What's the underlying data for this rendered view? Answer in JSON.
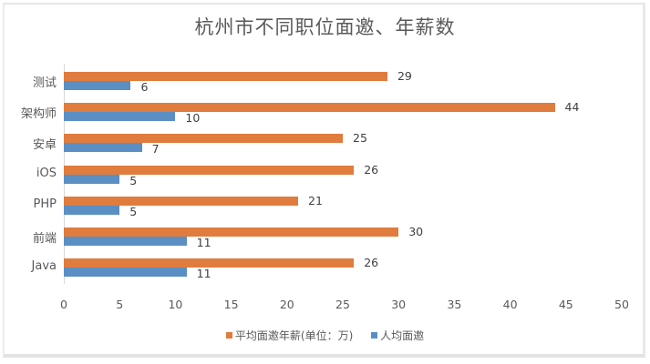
{
  "title": "杭州市不同职位面邀、年薪数",
  "legend": [
    {
      "label": "平均面邀年薪(单位：万)",
      "color": "#e07c3e"
    },
    {
      "label": "人均面邀",
      "color": "#5b8fc4"
    }
  ],
  "x_ticks": [
    "0",
    "5",
    "10",
    "15",
    "20",
    "25",
    "30",
    "35",
    "40",
    "45",
    "50"
  ],
  "categories": [
    "测试",
    "架构师",
    "安卓",
    "iOS",
    "PHP",
    "前端",
    "Java"
  ],
  "chart_data": {
    "type": "bar",
    "orientation": "horizontal",
    "title": "杭州市不同职位面邀、年薪数",
    "categories": [
      "测试",
      "架构师",
      "安卓",
      "iOS",
      "PHP",
      "前端",
      "Java"
    ],
    "series": [
      {
        "name": "平均面邀年薪(单位：万)",
        "color": "#e07c3e",
        "values": [
          29,
          44,
          25,
          26,
          21,
          30,
          26
        ]
      },
      {
        "name": "人均面邀",
        "color": "#5b8fc4",
        "values": [
          6,
          10,
          7,
          5,
          5,
          11,
          11
        ]
      }
    ],
    "xlabel": "",
    "ylabel": "",
    "xlim": [
      0,
      50
    ],
    "x_ticks": [
      0,
      5,
      10,
      15,
      20,
      25,
      30,
      35,
      40,
      45,
      50
    ],
    "grid": false,
    "data_labels": true,
    "legend_position": "bottom"
  }
}
